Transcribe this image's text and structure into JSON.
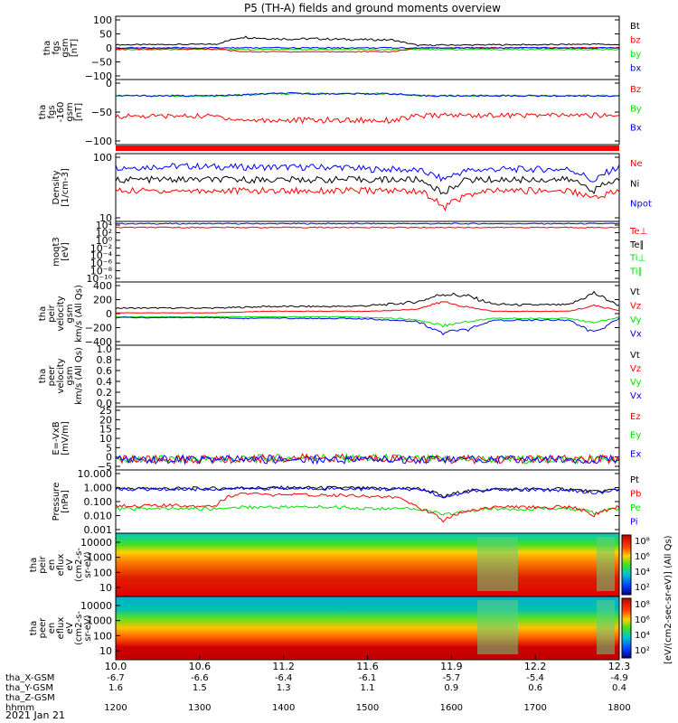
{
  "title": "P5 (TH-A) fields and ground moments overview",
  "date_label": "2021 Jan 21",
  "colors": {
    "black": "#000000",
    "red": "#ff0000",
    "green": "#00e000",
    "blue": "#0000ff"
  },
  "chart_data": [
    {
      "type": "line",
      "panel_id": "fgs",
      "ylabel": [
        "tha",
        "fgs",
        "gsm",
        "[nT]"
      ],
      "ylim": [
        -100,
        100
      ],
      "yticks": [
        "100",
        "50",
        "0",
        "−50",
        "−100"
      ],
      "legend": [
        {
          "name": "Bt",
          "color": "#000000"
        },
        {
          "name": "bz",
          "color": "#ff0000"
        },
        {
          "name": "by",
          "color": "#00e000"
        },
        {
          "name": "bx",
          "color": "#0000ff"
        }
      ],
      "series": [
        {
          "name": "Bt",
          "color": "#000000",
          "values": [
            10,
            10,
            11,
            11,
            12,
            35,
            30,
            28,
            29,
            27,
            26,
            25,
            8,
            9,
            9,
            10,
            10,
            10,
            11,
            12,
            10
          ]
        },
        {
          "name": "by",
          "color": "#00e000",
          "values": [
            -5,
            -5,
            -5,
            -5,
            -5,
            -5,
            -5,
            -5,
            -5,
            -5,
            -5,
            -5,
            -5,
            -5,
            -5,
            -5,
            -5,
            -5,
            -5,
            -5,
            -5
          ]
        },
        {
          "name": "bz",
          "color": "#ff0000",
          "values": [
            -3,
            -3,
            -3,
            -3,
            -3,
            -12,
            -12,
            -12,
            -12,
            -12,
            -12,
            -12,
            0,
            0,
            0,
            0,
            0,
            0,
            0,
            0,
            0
          ]
        },
        {
          "name": "bx",
          "color": "#0000ff",
          "values": [
            0,
            0,
            0,
            0,
            0,
            0,
            0,
            0,
            0,
            0,
            0,
            0,
            0,
            0,
            0,
            0,
            0,
            0,
            0,
            0,
            0
          ]
        }
      ]
    },
    {
      "type": "line",
      "panel_id": "fgs_dsl",
      "ylabel": [
        "tha",
        "fgs",
        "-160",
        "gsm",
        "[nT]"
      ],
      "ylim": [
        -120,
        40
      ],
      "yticks": [
        "0",
        "−50",
        "−100"
      ],
      "legend": [
        {
          "name": "Bz",
          "color": "#ff0000"
        },
        {
          "name": "By",
          "color": "#00e000"
        },
        {
          "name": "Bx",
          "color": "#0000ff"
        }
      ],
      "series": [
        {
          "name": "By",
          "color": "#00e000",
          "values": [
            0,
            0,
            0,
            0,
            0,
            2,
            5,
            5,
            5,
            5,
            5,
            5,
            0,
            0,
            0,
            0,
            0,
            0,
            0,
            0,
            0
          ]
        },
        {
          "name": "Bx",
          "color": "#0000ff",
          "values": [
            0,
            0,
            0,
            0,
            0,
            2,
            5,
            6,
            5,
            5,
            5,
            5,
            0,
            0,
            0,
            0,
            0,
            0,
            0,
            0,
            0
          ]
        },
        {
          "name": "Bz",
          "color": "#ff0000",
          "values": [
            -50,
            -50,
            -50,
            -50,
            -50,
            -60,
            -60,
            -60,
            -60,
            -60,
            -60,
            -60,
            -50,
            -48,
            -48,
            -48,
            -48,
            -48,
            -48,
            -48,
            -48
          ]
        }
      ]
    },
    {
      "type": "line",
      "panel_id": "density",
      "ylabel": [
        "Density",
        "[1/cm-3]"
      ],
      "ylim_log": [
        0,
        2.6
      ],
      "yticks": [
        "100",
        "10"
      ],
      "legend": [
        {
          "name": "Ne",
          "color": "#ff0000"
        },
        {
          "name": "Ni",
          "color": "#000000"
        },
        {
          "name": "Npot",
          "color": "#0000ff"
        }
      ],
      "series": [
        {
          "name": "Npot",
          "color": "#0000ff",
          "values": [
            120,
            120,
            130,
            130,
            125,
            120,
            120,
            120,
            120,
            120,
            100,
            100,
            90,
            40,
            90,
            100,
            100,
            100,
            100,
            30,
            120
          ]
        },
        {
          "name": "Ni",
          "color": "#000000",
          "values": [
            40,
            40,
            40,
            40,
            40,
            40,
            40,
            40,
            40,
            40,
            40,
            40,
            40,
            10,
            40,
            40,
            40,
            40,
            40,
            15,
            40
          ]
        },
        {
          "name": "Ne",
          "color": "#ff0000",
          "values": [
            15,
            15,
            15,
            15,
            15,
            15,
            15,
            15,
            15,
            15,
            15,
            15,
            15,
            3,
            10,
            15,
            15,
            15,
            15,
            8,
            15
          ]
        }
      ]
    },
    {
      "type": "line",
      "panel_id": "temps",
      "ylabel": [
        "moqt3",
        "[eV]"
      ],
      "ylim_log": [
        -10,
        4
      ],
      "yticks": [
        "10⁴",
        "10²",
        "10⁰",
        "10⁻²",
        "10⁻⁴",
        "10⁻⁶",
        "10⁻⁸",
        "10⁻¹⁰"
      ],
      "legend": [
        {
          "name": "Te⊥",
          "color": "#ff0000"
        },
        {
          "name": "Te∥",
          "color": "#000000"
        },
        {
          "name": "Ti⊥",
          "color": "#00e000"
        },
        {
          "name": "Ti∥",
          "color": "#00e000"
        }
      ],
      "series": [
        {
          "name": "Ti",
          "color": "#0000ff",
          "values": [
            3000,
            3000,
            3000,
            3000,
            3000,
            3000,
            3000,
            3000,
            3000,
            3000,
            3000,
            3000,
            3000,
            3000,
            3000,
            3000,
            3000,
            3000,
            3000,
            3000,
            3000
          ]
        },
        {
          "name": "Te",
          "color": "#ff0000",
          "values": [
            400,
            400,
            400,
            400,
            400,
            400,
            400,
            400,
            400,
            400,
            400,
            400,
            400,
            400,
            400,
            400,
            400,
            400,
            400,
            400,
            400
          ]
        }
      ]
    },
    {
      "type": "line",
      "panel_id": "peir_vel",
      "ylabel": [
        "tha",
        "peir",
        "velocity",
        "gsm",
        "km/s (All Qs)"
      ],
      "ylim": [
        -400,
        400
      ],
      "yticks": [
        "400",
        "200",
        "0",
        "−200",
        "−400"
      ],
      "legend": [
        {
          "name": "Vt",
          "color": "#000000"
        },
        {
          "name": "Vz",
          "color": "#ff0000"
        },
        {
          "name": "Vy",
          "color": "#00e000"
        },
        {
          "name": "Vx",
          "color": "#0000ff"
        }
      ],
      "series": [
        {
          "name": "Vt",
          "color": "#000000",
          "values": [
            70,
            70,
            70,
            70,
            70,
            80,
            90,
            90,
            90,
            90,
            100,
            120,
            150,
            250,
            220,
            120,
            110,
            110,
            110,
            260,
            100
          ]
        },
        {
          "name": "Vz",
          "color": "#ff0000",
          "values": [
            10,
            10,
            10,
            10,
            10,
            20,
            30,
            30,
            30,
            30,
            30,
            40,
            60,
            150,
            80,
            30,
            30,
            30,
            30,
            100,
            40
          ]
        },
        {
          "name": "Vy",
          "color": "#00e000",
          "values": [
            -40,
            -40,
            -40,
            -40,
            -40,
            -40,
            -40,
            -40,
            -40,
            -40,
            -50,
            -60,
            -80,
            -150,
            -100,
            -60,
            -60,
            -60,
            -60,
            -120,
            -40
          ]
        },
        {
          "name": "Vx",
          "color": "#0000ff",
          "values": [
            -50,
            -50,
            -50,
            -50,
            -50,
            -60,
            -60,
            -60,
            -60,
            -60,
            -70,
            -80,
            -100,
            -250,
            -200,
            -90,
            -80,
            -80,
            -80,
            -250,
            -60
          ]
        }
      ]
    },
    {
      "type": "line",
      "panel_id": "peer_vel",
      "ylabel": [
        "tha",
        "peer",
        "velocity",
        "gsm",
        "km/s (All Qs)"
      ],
      "ylim": [
        0,
        1
      ],
      "yticks": [
        "1.0",
        "0.8",
        "0.6",
        "0.4",
        "0.2",
        "0.0"
      ],
      "legend": [
        {
          "name": "Vt",
          "color": "#000000"
        },
        {
          "name": "Vz",
          "color": "#ff0000"
        },
        {
          "name": "Vy",
          "color": "#00e000"
        },
        {
          "name": "Vx",
          "color": "#0000ff"
        }
      ],
      "series": []
    },
    {
      "type": "line",
      "panel_id": "exb",
      "ylabel": [
        "E=-VxB",
        "[mV/m]"
      ],
      "ylim": [
        -5,
        25
      ],
      "yticks": [
        "25",
        "20",
        "15",
        "10",
        "5",
        "0",
        "−5"
      ],
      "legend": [
        {
          "name": "Ez",
          "color": "#ff0000"
        },
        {
          "name": "Ey",
          "color": "#00e000"
        },
        {
          "name": "Ex",
          "color": "#0000ff"
        }
      ],
      "series": [
        {
          "name": "Ey",
          "color": "#00e000",
          "values": [
            0,
            0,
            0,
            0,
            0,
            0,
            0.5,
            0.5,
            1,
            0.5,
            0.5,
            0.5,
            0.2,
            0,
            0,
            0,
            0,
            0,
            0,
            0,
            0
          ]
        },
        {
          "name": "Ez",
          "color": "#ff0000",
          "values": [
            0,
            0,
            0,
            0,
            0,
            0,
            0.5,
            0.5,
            1,
            0.5,
            0.5,
            0.5,
            0.2,
            0,
            0,
            0,
            0,
            0,
            0,
            0,
            0
          ]
        },
        {
          "name": "Ex",
          "color": "#0000ff",
          "values": [
            0,
            0,
            0,
            0,
            0,
            0,
            0,
            0,
            0,
            0,
            0,
            0,
            0,
            0,
            0,
            0,
            0,
            0,
            0,
            0,
            0
          ]
        }
      ]
    },
    {
      "type": "line",
      "panel_id": "pressure",
      "ylabel": [
        "Pressure",
        "[nPa]"
      ],
      "ylim_log": [
        -3.3,
        1.3
      ],
      "yticks": [
        "10.000",
        "1.000",
        "0.100",
        "0.010",
        "0.001"
      ],
      "legend": [
        {
          "name": "Pt",
          "color": "#000000"
        },
        {
          "name": "Pb",
          "color": "#ff0000"
        },
        {
          "name": "Pe",
          "color": "#00e000"
        },
        {
          "name": "Pi",
          "color": "#0000ff"
        }
      ],
      "series": [
        {
          "name": "Pt",
          "color": "#000000",
          "values": [
            0.9,
            0.9,
            0.9,
            0.9,
            0.9,
            1,
            1,
            1,
            1,
            1,
            0.9,
            0.9,
            0.9,
            0.2,
            0.6,
            0.8,
            0.8,
            0.8,
            0.8,
            0.5,
            0.8
          ]
        },
        {
          "name": "Pi",
          "color": "#0000ff",
          "values": [
            0.8,
            0.8,
            0.8,
            0.8,
            0.8,
            0.9,
            0.9,
            0.9,
            0.9,
            0.9,
            0.8,
            0.8,
            0.8,
            0.15,
            0.5,
            0.7,
            0.7,
            0.7,
            0.7,
            0.4,
            0.7
          ]
        },
        {
          "name": "Pe",
          "color": "#00e000",
          "values": [
            0.03,
            0.03,
            0.03,
            0.03,
            0.03,
            0.04,
            0.04,
            0.04,
            0.04,
            0.04,
            0.03,
            0.03,
            0.03,
            0.01,
            0.02,
            0.03,
            0.03,
            0.03,
            0.03,
            0.015,
            0.03
          ]
        },
        {
          "name": "Pb",
          "color": "#ff0000",
          "values": [
            0.05,
            0.05,
            0.05,
            0.05,
            0.05,
            0.4,
            0.3,
            0.3,
            0.3,
            0.3,
            0.25,
            0.2,
            0.03,
            0.004,
            0.02,
            0.04,
            0.04,
            0.04,
            0.04,
            0.01,
            0.04
          ]
        }
      ]
    },
    {
      "type": "heatmap",
      "panel_id": "peir_spec",
      "ylabel": [
        "tha",
        "peir",
        "en",
        "eflux",
        "eV",
        "(cm2-s-",
        "sr-eV)"
      ],
      "yticks": [
        "10000",
        "1000",
        "100",
        "10"
      ]
    },
    {
      "type": "heatmap",
      "panel_id": "peer_spec",
      "ylabel": [
        "tha",
        "peer",
        "en",
        "eflux",
        "eV",
        "(cm2-s-",
        "sr-eV)"
      ],
      "yticks": [
        "10000",
        "1000",
        "100",
        "10"
      ]
    }
  ],
  "colorbar": {
    "label": "[eV/(cm2-sec-sr-eV)] (All Qs)",
    "ticks1": [
      "10⁸",
      "10⁶",
      "10⁴",
      "10²"
    ],
    "ticks2": [
      "10⁸",
      "10⁶",
      "10⁴",
      "10²"
    ]
  },
  "xaxis": {
    "ticks": [
      "10.0",
      "10.6",
      "11.2",
      "11.6",
      "11.9",
      "12.2",
      "12.3"
    ],
    "rows": [
      {
        "label": "tha_X-GSM",
        "values": [
          "-6.7",
          "-6.6",
          "-6.4",
          "-6.1",
          "-5.7",
          "-5.4",
          "-4.9"
        ]
      },
      {
        "label": "tha_Y-GSM",
        "values": [
          "1.6",
          "1.5",
          "1.3",
          "1.1",
          "0.9",
          "0.6",
          "0.4"
        ]
      },
      {
        "label": "tha_Z-GSM",
        "values": [
          "",
          "",
          "",
          "",
          "",
          "",
          ""
        ]
      },
      {
        "label": "hhmm",
        "values": [
          "1200",
          "1300",
          "1400",
          "1500",
          "1600",
          "1700",
          "1800"
        ]
      }
    ]
  }
}
